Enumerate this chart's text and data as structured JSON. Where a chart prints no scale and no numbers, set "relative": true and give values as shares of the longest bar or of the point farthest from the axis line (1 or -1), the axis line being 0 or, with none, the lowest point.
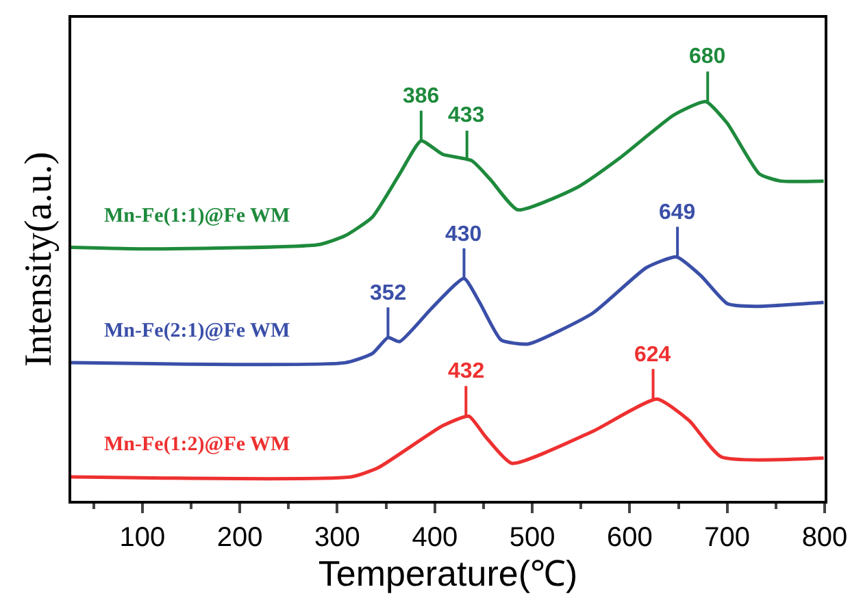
{
  "chart_data": {
    "type": "line",
    "relative": true,
    "xlabel": "Temperature(℃)",
    "ylabel": "Intensity(a.u.)",
    "xlim": [
      27,
      800
    ],
    "xticks": [
      100,
      200,
      300,
      400,
      500,
      600,
      700,
      800
    ],
    "legend": false,
    "marker": "none",
    "line_style": "solid",
    "series": [
      {
        "name": "Mn-Fe(1:1)@Fe WM",
        "color": "#1e8a3c",
        "x": [
          27,
          110,
          281,
          308,
          336,
          364,
          386,
          408,
          438,
          457,
          485,
          546,
          590,
          645,
          678,
          700,
          733,
          755,
          799
        ],
        "values": [
          0.635,
          0.631,
          0.642,
          0.664,
          0.711,
          0.819,
          0.902,
          0.868,
          0.852,
          0.805,
          0.729,
          0.785,
          0.859,
          0.966,
          1.0,
          0.946,
          0.819,
          0.801,
          0.801
        ]
      },
      {
        "name": "Mn-Fe(2:1)@Fe WM",
        "color": "#3a4fa8",
        "x": [
          27,
          308,
          336,
          352,
          364,
          397,
          430,
          446,
          468,
          496,
          562,
          617,
          648,
          673,
          700,
          728,
          799
        ],
        "values": [
          0.346,
          0.346,
          0.369,
          0.409,
          0.399,
          0.483,
          0.557,
          0.497,
          0.403,
          0.393,
          0.47,
          0.584,
          0.611,
          0.564,
          0.494,
          0.487,
          0.497
        ]
      },
      {
        "name": "Mn-Fe(1:2)@Fe WM",
        "color": "#ee3030",
        "x": [
          27,
          314,
          342,
          408,
          435,
          452,
          479,
          562,
          628,
          661,
          694,
          799
        ],
        "values": [
          0.06,
          0.06,
          0.083,
          0.188,
          0.212,
          0.161,
          0.094,
          0.174,
          0.255,
          0.201,
          0.11,
          0.107
        ]
      }
    ],
    "annotations": [
      {
        "text": "386",
        "x": 386,
        "y": 0.902
      },
      {
        "text": "433",
        "x": 433,
        "y": 0.852
      },
      {
        "text": "680",
        "x": 680,
        "y": 1.0
      },
      {
        "text": "352",
        "x": 352,
        "y": 0.409
      },
      {
        "text": "430",
        "x": 430,
        "y": 0.557
      },
      {
        "text": "649",
        "x": 649,
        "y": 0.611
      },
      {
        "text": "432",
        "x": 432,
        "y": 0.212
      },
      {
        "text": "624",
        "x": 624,
        "y": 0.255
      }
    ]
  }
}
